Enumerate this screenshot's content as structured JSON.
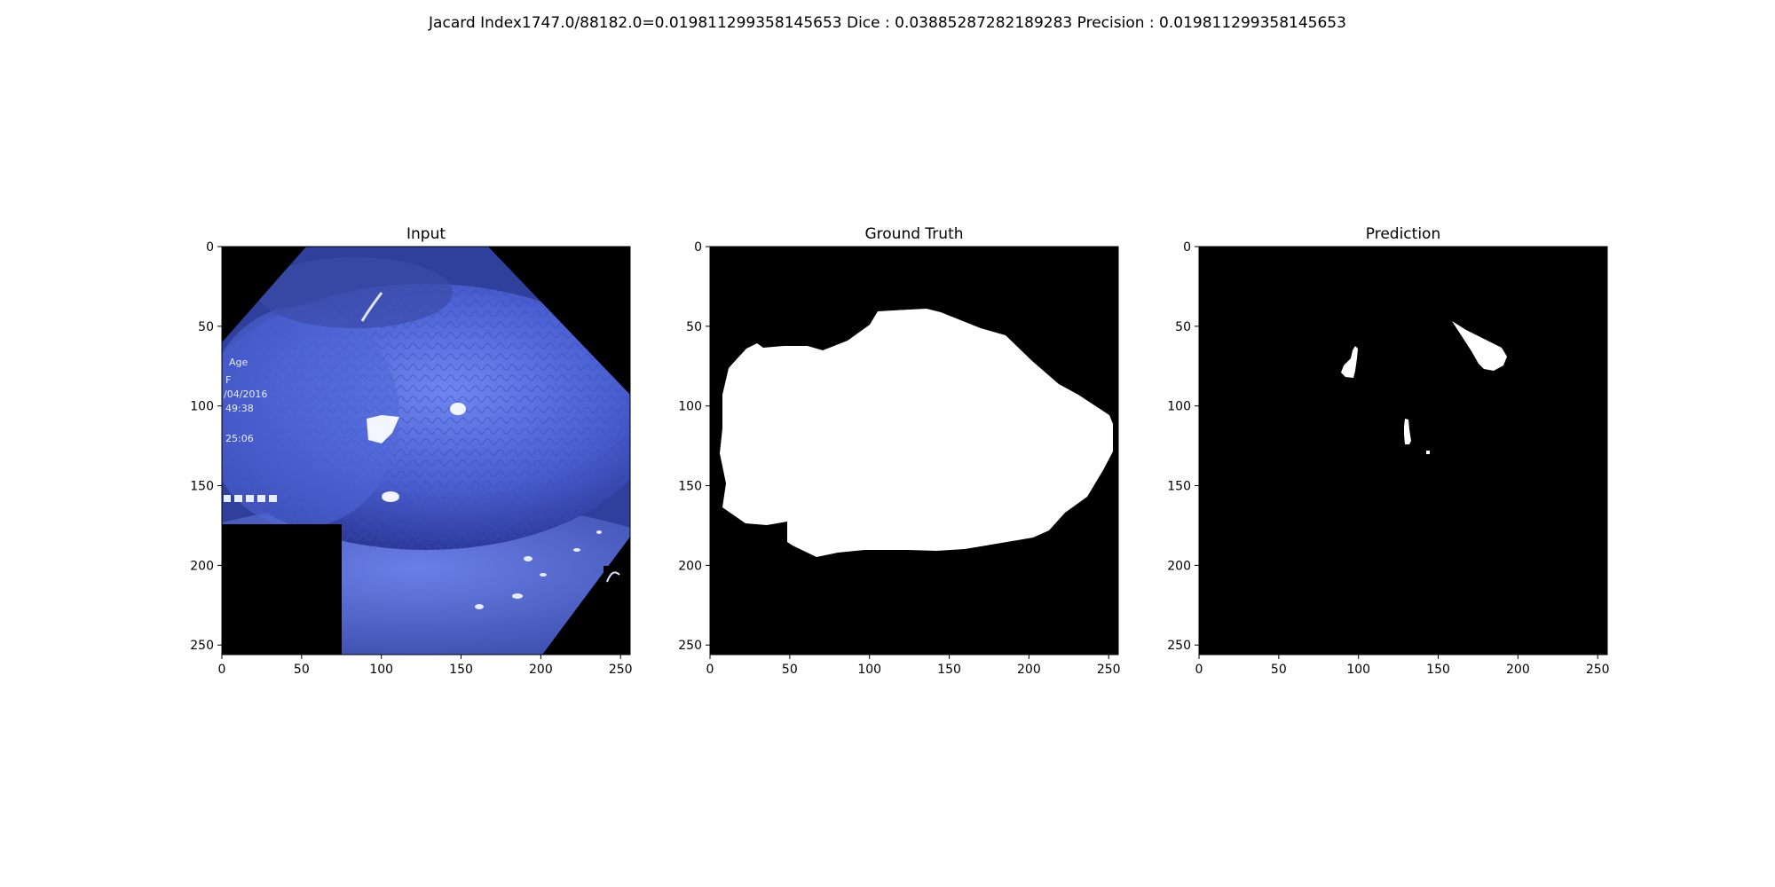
{
  "suptitle": "Jacard Index1747.0/88182.0=0.019811299358145653 Dice : 0.03885287282189283 Precision : 0.019811299358145653",
  "panels": [
    {
      "key": "input",
      "title": "Input"
    },
    {
      "key": "ground_truth",
      "title": "Ground Truth"
    },
    {
      "key": "prediction",
      "title": "Prediction"
    }
  ],
  "axes": {
    "x_ticks": [
      "0",
      "50",
      "100",
      "150",
      "200",
      "250"
    ],
    "y_ticks": [
      "0",
      "50",
      "100",
      "150",
      "200",
      "250"
    ],
    "range": [
      0,
      256
    ]
  },
  "input_overlay_text": [
    "Age",
    "F",
    "/04/2016",
    "49:38",
    "25:06"
  ],
  "colors": {
    "mask_fg": "#ffffff",
    "mask_bg": "#000000",
    "tissue": "#4a5fd0",
    "tissue_dark": "#2c3a9a"
  }
}
